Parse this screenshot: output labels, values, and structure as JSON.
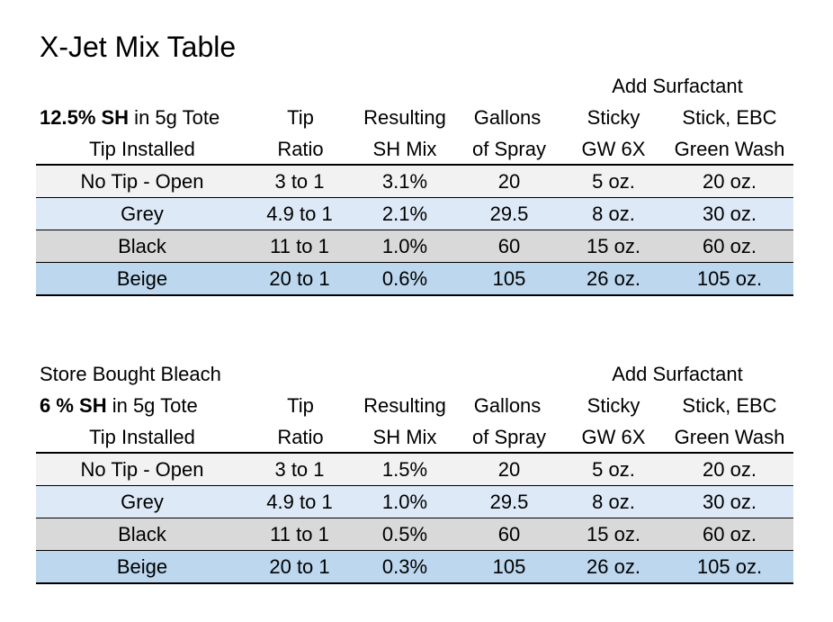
{
  "title": "X-Jet Mix Table",
  "tables": [
    {
      "caption": "",
      "header": {
        "col0": {
          "line1_bold": "12.5% SH",
          "line1_rest": " in 5g Tote",
          "line2": "Tip Installed"
        },
        "col1": [
          "Tip",
          "Ratio"
        ],
        "col2": [
          "Resulting",
          "SH Mix"
        ],
        "col3": [
          "Gallons",
          "of Spray"
        ],
        "group": "Add Surfactant",
        "col4": [
          "Sticky",
          "GW 6X"
        ],
        "col5": [
          "Stick, EBC",
          "Green Wash"
        ]
      },
      "rows": [
        [
          "No Tip - Open",
          "3 to 1",
          "3.1%",
          "20",
          "5 oz.",
          "20 oz."
        ],
        [
          "Grey",
          "4.9 to 1",
          "2.1%",
          "29.5",
          "8 oz.",
          "30 oz."
        ],
        [
          "Black",
          "11 to 1",
          "1.0%",
          "60",
          "15 oz.",
          "60 oz."
        ],
        [
          "Beige",
          "20 to 1",
          "0.6%",
          "105",
          "26 oz.",
          "105 oz."
        ]
      ]
    },
    {
      "caption": "Store Bought Bleach",
      "header": {
        "col0": {
          "line1_bold": "6 % SH",
          "line1_rest": " in 5g Tote",
          "line2": "Tip Installed"
        },
        "col1": [
          "Tip",
          "Ratio"
        ],
        "col2": [
          "Resulting",
          "SH Mix"
        ],
        "col3": [
          "Gallons",
          "of Spray"
        ],
        "group": "Add Surfactant",
        "col4": [
          "Sticky",
          "GW 6X"
        ],
        "col5": [
          "Stick, EBC",
          "Green Wash"
        ]
      },
      "rows": [
        [
          "No Tip - Open",
          "3 to 1",
          "1.5%",
          "20",
          "5 oz.",
          "20 oz."
        ],
        [
          "Grey",
          "4.9 to 1",
          "1.0%",
          "29.5",
          "8 oz.",
          "30 oz."
        ],
        [
          "Black",
          "11 to 1",
          "0.5%",
          "60",
          "15 oz.",
          "60 oz."
        ],
        [
          "Beige",
          "20 to 1",
          "0.3%",
          "105",
          "26 oz.",
          "105 oz."
        ]
      ]
    }
  ],
  "colors": {
    "row_light_grey": "#f2f2f2",
    "row_light_blue": "#dde9f7",
    "row_grey": "#d9d9d9",
    "row_blue": "#bdd7ee"
  }
}
